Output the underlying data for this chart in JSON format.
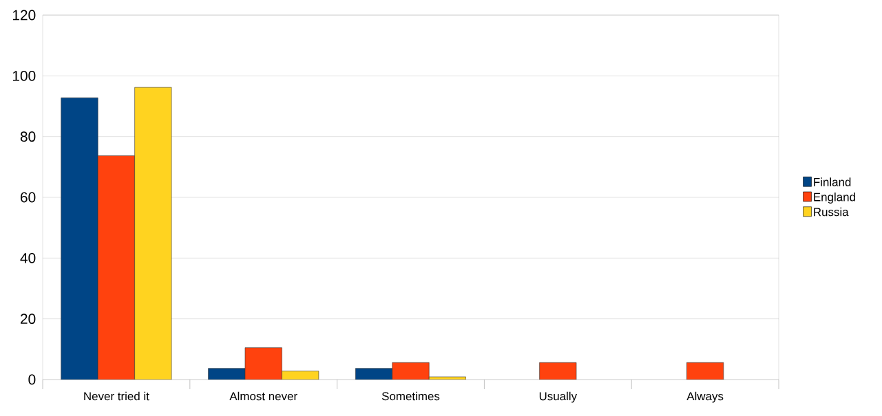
{
  "chart_data": {
    "type": "bar",
    "categories": [
      "Never tried it",
      "Almost never",
      "Sometimes",
      "Usually",
      "Always"
    ],
    "series": [
      {
        "name": "Finland",
        "color": "#004586",
        "values": [
          92.8,
          3.7,
          3.7,
          null,
          null
        ]
      },
      {
        "name": "England",
        "color": "#ff420e",
        "values": [
          73.7,
          10.5,
          5.6,
          5.6,
          5.6
        ]
      },
      {
        "name": "Russia",
        "color": "#ffd320",
        "values": [
          96.2,
          2.8,
          0.9,
          null,
          null
        ]
      }
    ],
    "ylim": [
      0,
      120
    ],
    "yticks": [
      0,
      20,
      40,
      60,
      80,
      100,
      120
    ],
    "grid": "y",
    "legend": "right"
  }
}
